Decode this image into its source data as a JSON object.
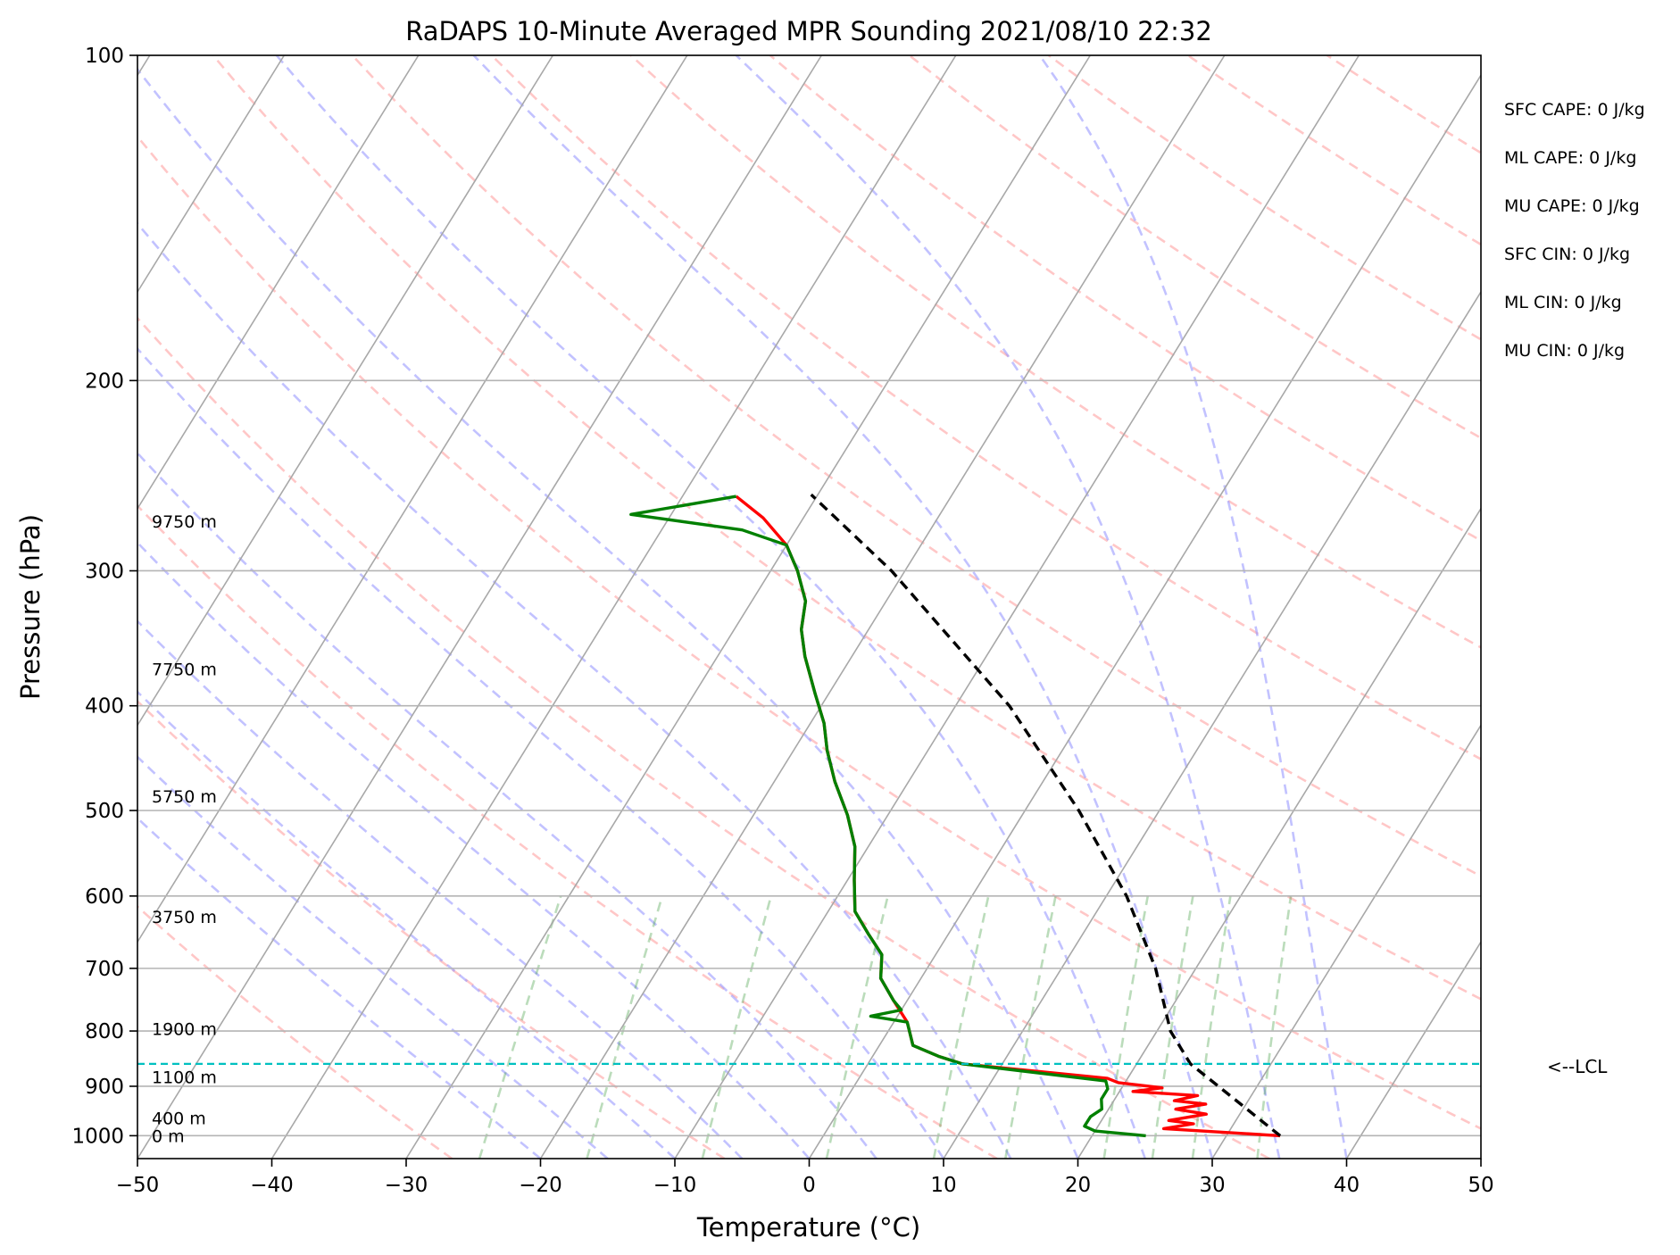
{
  "chart_data": {
    "type": "skew-t",
    "title": "RaDAPS 10-Minute Averaged MPR Sounding 2021/08/10 22:32",
    "xlabel": "Temperature (°C)",
    "ylabel": "Pressure (hPa)",
    "xlim": [
      -50,
      50
    ],
    "ylim": [
      1050,
      100
    ],
    "y_scale": "log",
    "grid": true,
    "x_ticks": [
      -50,
      -40,
      -30,
      -20,
      -10,
      0,
      10,
      20,
      30,
      40,
      50
    ],
    "y_ticks": [
      100,
      200,
      300,
      400,
      500,
      600,
      700,
      800,
      900,
      1000
    ],
    "height_labels": [
      {
        "p": 270,
        "text": "9750 m"
      },
      {
        "p": 370,
        "text": "7750 m"
      },
      {
        "p": 485,
        "text": "5750 m"
      },
      {
        "p": 627,
        "text": "3750 m"
      },
      {
        "p": 796,
        "text": "1900 m"
      },
      {
        "p": 882,
        "text": "1100 m"
      },
      {
        "p": 963,
        "text": "400 m"
      },
      {
        "p": 1000,
        "text": "0 m"
      }
    ],
    "indices": [
      "SFC CAPE: 0 J/kg",
      "ML CAPE: 0 J/kg",
      "MU CAPE: 0 J/kg",
      "SFC CIN: 0 J/kg",
      "ML CIN: 0 J/kg",
      "MU CIN: 0 J/kg"
    ],
    "lcl": {
      "p": 858,
      "label": "<--LCL"
    },
    "series": [
      {
        "role": "temperature",
        "color": "#ff0000",
        "points": [
          [
            1000,
            34
          ],
          [
            985,
            25
          ],
          [
            975,
            27
          ],
          [
            968,
            25
          ],
          [
            955,
            27.5
          ],
          [
            945,
            25
          ],
          [
            935,
            27
          ],
          [
            928,
            24.5
          ],
          [
            918,
            26
          ],
          [
            910,
            21
          ],
          [
            903,
            23
          ],
          [
            893,
            19.5
          ],
          [
            885,
            18.5
          ],
          [
            858,
            7
          ],
          [
            845,
            5
          ],
          [
            825,
            2.5
          ],
          [
            785,
            1
          ],
          [
            750,
            -1
          ],
          [
            715,
            -3
          ],
          [
            680,
            -4
          ],
          [
            650,
            -6
          ],
          [
            620,
            -8
          ],
          [
            580,
            -9.5
          ],
          [
            540,
            -11
          ],
          [
            505,
            -13
          ],
          [
            470,
            -15.5
          ],
          [
            440,
            -17.5
          ],
          [
            415,
            -19
          ],
          [
            390,
            -21
          ],
          [
            360,
            -23.5
          ],
          [
            340,
            -25
          ],
          [
            320,
            -26
          ],
          [
            300,
            -28
          ],
          [
            284,
            -30
          ],
          [
            268,
            -33
          ],
          [
            256,
            -36
          ]
        ]
      },
      {
        "role": "dewpoint",
        "color": "#008000",
        "points": [
          [
            1000,
            24
          ],
          [
            990,
            20
          ],
          [
            980,
            19
          ],
          [
            960,
            19
          ],
          [
            945,
            19.5
          ],
          [
            925,
            19
          ],
          [
            905,
            19
          ],
          [
            890,
            18.5
          ],
          [
            858,
            7
          ],
          [
            845,
            5
          ],
          [
            825,
            2.5
          ],
          [
            785,
            1
          ],
          [
            775,
            -2
          ],
          [
            765,
            0
          ],
          [
            750,
            -1
          ],
          [
            715,
            -3
          ],
          [
            680,
            -4
          ],
          [
            650,
            -6
          ],
          [
            620,
            -8
          ],
          [
            580,
            -9.5
          ],
          [
            540,
            -11
          ],
          [
            505,
            -13
          ],
          [
            470,
            -15.5
          ],
          [
            440,
            -17.5
          ],
          [
            415,
            -19
          ],
          [
            390,
            -21
          ],
          [
            360,
            -23.5
          ],
          [
            340,
            -25
          ],
          [
            320,
            -26
          ],
          [
            300,
            -28
          ],
          [
            284,
            -30
          ],
          [
            275,
            -34
          ],
          [
            266,
            -43
          ],
          [
            256,
            -36
          ]
        ]
      },
      {
        "role": "parcel",
        "color": "#000000",
        "points": [
          [
            1000,
            34
          ],
          [
            858,
            24
          ],
          [
            800,
            21
          ],
          [
            700,
            17
          ],
          [
            600,
            11.5
          ],
          [
            500,
            4
          ],
          [
            400,
            -6
          ],
          [
            300,
            -21
          ],
          [
            255,
            -30.5
          ]
        ]
      }
    ]
  }
}
